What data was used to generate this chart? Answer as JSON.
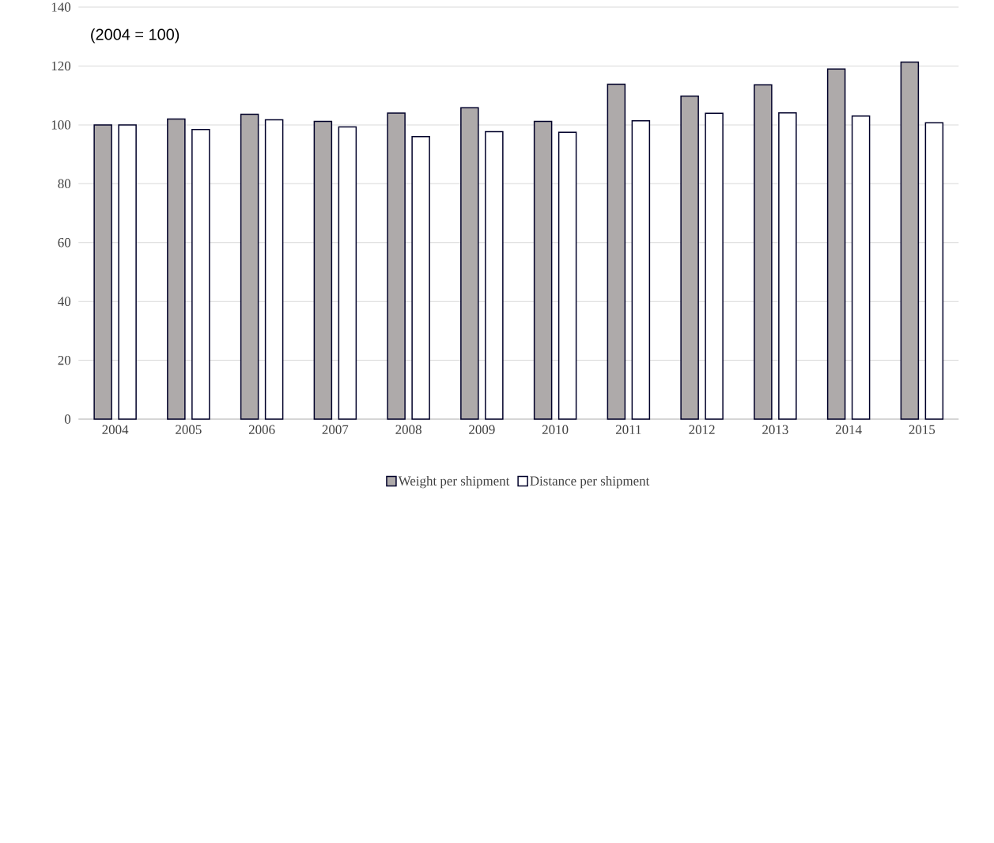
{
  "chart_data": {
    "type": "bar",
    "categories": [
      "2004",
      "2005",
      "2006",
      "2007",
      "2008",
      "2009",
      "2010",
      "2011",
      "2012",
      "2013",
      "2014",
      "2015"
    ],
    "series": [
      {
        "name": "Weight per shipment",
        "color": "#aeaaaa",
        "values": [
          100,
          102.0,
          103.6,
          101.2,
          104.0,
          105.8,
          101.2,
          113.8,
          109.8,
          113.6,
          119.0,
          121.3
        ]
      },
      {
        "name": "Distance per shipment",
        "color": "#ffffff",
        "values": [
          100,
          98.4,
          101.7,
          99.3,
          96.0,
          97.7,
          97.5,
          101.4,
          103.9,
          104.1,
          103.0,
          100.7
        ]
      }
    ],
    "ylim": [
      0,
      140
    ],
    "yticks": [
      0,
      20,
      40,
      60,
      80,
      100,
      120,
      140
    ],
    "grid": "y",
    "legend": "bottom",
    "annotations": [
      "(2004 = 100)"
    ]
  }
}
